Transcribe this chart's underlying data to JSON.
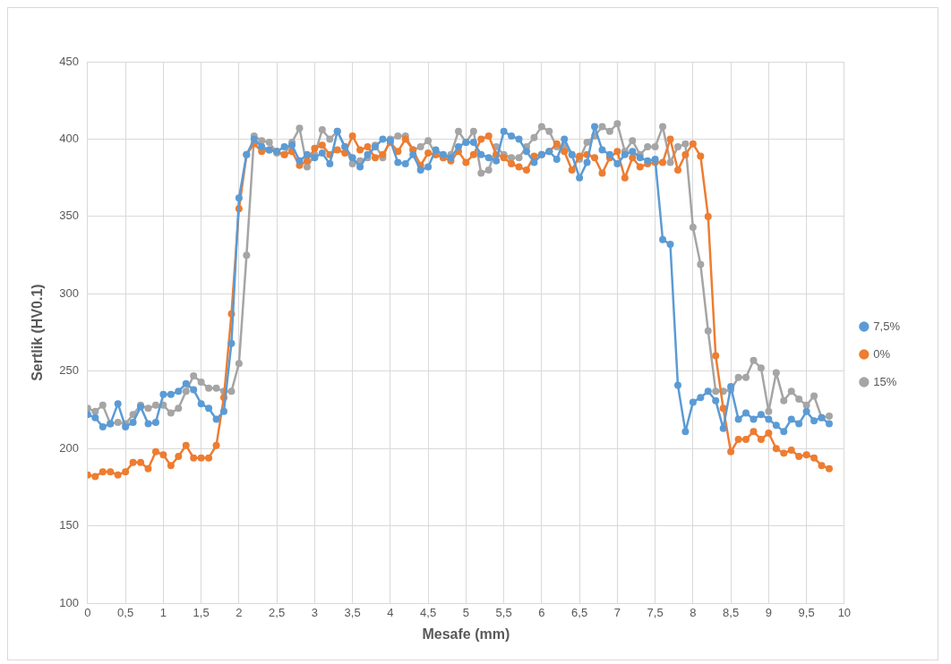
{
  "chart_data": {
    "type": "line",
    "xlabel": "Mesafe (mm)",
    "ylabel": "Sertlik (HV0.1)",
    "x": [
      0,
      0.1,
      0.2,
      0.3,
      0.4,
      0.5,
      0.6,
      0.7,
      0.8,
      0.9,
      1,
      1.1,
      1.2,
      1.3,
      1.4,
      1.5,
      1.6,
      1.7,
      1.8,
      1.9,
      2,
      2.1,
      2.2,
      2.3,
      2.4,
      2.5,
      2.6,
      2.7,
      2.8,
      2.9,
      3,
      3.1,
      3.2,
      3.3,
      3.4,
      3.5,
      3.6,
      3.7,
      3.8,
      3.9,
      4,
      4.1,
      4.2,
      4.3,
      4.4,
      4.5,
      4.6,
      4.7,
      4.8,
      4.9,
      5,
      5.1,
      5.2,
      5.3,
      5.4,
      5.5,
      5.6,
      5.7,
      5.8,
      5.9,
      6,
      6.1,
      6.2,
      6.3,
      6.4,
      6.5,
      6.6,
      6.7,
      6.8,
      6.9,
      7,
      7.1,
      7.2,
      7.3,
      7.4,
      7.5,
      7.6,
      7.7,
      7.8,
      7.9,
      8,
      8.1,
      8.2,
      8.3,
      8.4,
      8.5,
      8.6,
      8.7,
      8.8,
      8.9,
      9,
      9.1,
      9.2,
      9.3,
      9.4,
      9.5,
      9.6,
      9.7,
      9.8
    ],
    "series": [
      {
        "name": "7,5%",
        "color": "#5b9bd5",
        "values": [
          222,
          220,
          214,
          216,
          229,
          214,
          217,
          227,
          216,
          217,
          235,
          235,
          237,
          242,
          238,
          229,
          226,
          219,
          224,
          268,
          362,
          390,
          400,
          395,
          393,
          392,
          395,
          396,
          386,
          390,
          388,
          391,
          384,
          405,
          395,
          388,
          382,
          390,
          395,
          400,
          399,
          385,
          384,
          390,
          380,
          382,
          393,
          390,
          388,
          395,
          398,
          398,
          390,
          388,
          386,
          405,
          402,
          400,
          392,
          385,
          390,
          392,
          387,
          400,
          390,
          375,
          385,
          408,
          393,
          390,
          384,
          390,
          392,
          388,
          386,
          387,
          335,
          332,
          241,
          211,
          230,
          233,
          237,
          231,
          213,
          240,
          219,
          223,
          219,
          222,
          219,
          215,
          211,
          219,
          216,
          224,
          218,
          220,
          216
        ]
      },
      {
        "name": "0%",
        "color": "#ed7d31",
        "values": [
          183,
          182,
          185,
          185,
          183,
          185,
          191,
          191,
          187,
          198,
          196,
          189,
          195,
          202,
          194,
          194,
          194,
          202,
          233,
          287,
          355,
          390,
          397,
          392,
          393,
          392,
          390,
          392,
          383,
          386,
          394,
          396,
          390,
          393,
          391,
          402,
          393,
          395,
          388,
          390,
          398,
          392,
          400,
          393,
          383,
          391,
          390,
          388,
          386,
          392,
          385,
          390,
          400,
          402,
          390,
          388,
          384,
          382,
          380,
          389,
          390,
          392,
          397,
          392,
          380,
          389,
          390,
          388,
          378,
          388,
          392,
          375,
          388,
          382,
          384,
          385,
          385,
          400,
          380,
          390,
          397,
          389,
          350,
          260,
          226,
          198,
          206,
          206,
          211,
          206,
          210,
          200,
          197,
          199,
          195,
          196,
          194,
          189,
          187
        ]
      },
      {
        "name": "15%",
        "color": "#a5a5a5",
        "values": [
          226,
          224,
          228,
          216,
          217,
          216,
          222,
          228,
          226,
          228,
          228,
          223,
          226,
          237,
          247,
          243,
          239,
          239,
          237,
          237,
          255,
          325,
          402,
          399,
          398,
          391,
          390,
          398,
          407,
          382,
          390,
          406,
          400,
          405,
          395,
          384,
          386,
          388,
          396,
          388,
          400,
          402,
          402,
          393,
          395,
          399,
          390,
          388,
          390,
          405,
          398,
          405,
          378,
          380,
          395,
          390,
          388,
          388,
          395,
          401,
          408,
          405,
          395,
          396,
          390,
          387,
          398,
          402,
          408,
          405,
          410,
          392,
          399,
          390,
          395,
          395,
          408,
          385,
          395,
          397,
          343,
          319,
          276,
          237,
          237,
          238,
          246,
          246,
          257,
          252,
          224,
          249,
          231,
          237,
          232,
          228,
          234,
          220,
          221
        ]
      }
    ],
    "xlim": [
      0,
      10
    ],
    "xticks": [
      0,
      {
        "value": 0.5,
        "label": "0,5"
      },
      1,
      {
        "value": 1.5,
        "label": "1,5"
      },
      2,
      {
        "value": 2.5,
        "label": "2,5"
      },
      3,
      {
        "value": 3.5,
        "label": "3,5"
      },
      4,
      {
        "value": 4.5,
        "label": "4,5"
      },
      5,
      {
        "value": 5.5,
        "label": "5,5"
      },
      6,
      {
        "value": 6.5,
        "label": "6,5"
      },
      7,
      {
        "value": 7.5,
        "label": "7,5"
      },
      8,
      {
        "value": 8.5,
        "label": "8,5"
      },
      9,
      {
        "value": 9.5,
        "label": "9,5"
      },
      10
    ],
    "ylim": [
      100,
      450
    ],
    "yticks": [
      100,
      150,
      200,
      250,
      300,
      350,
      400,
      450
    ],
    "grid": true,
    "legend": "right",
    "marker": "circle",
    "line_style": "solid"
  }
}
